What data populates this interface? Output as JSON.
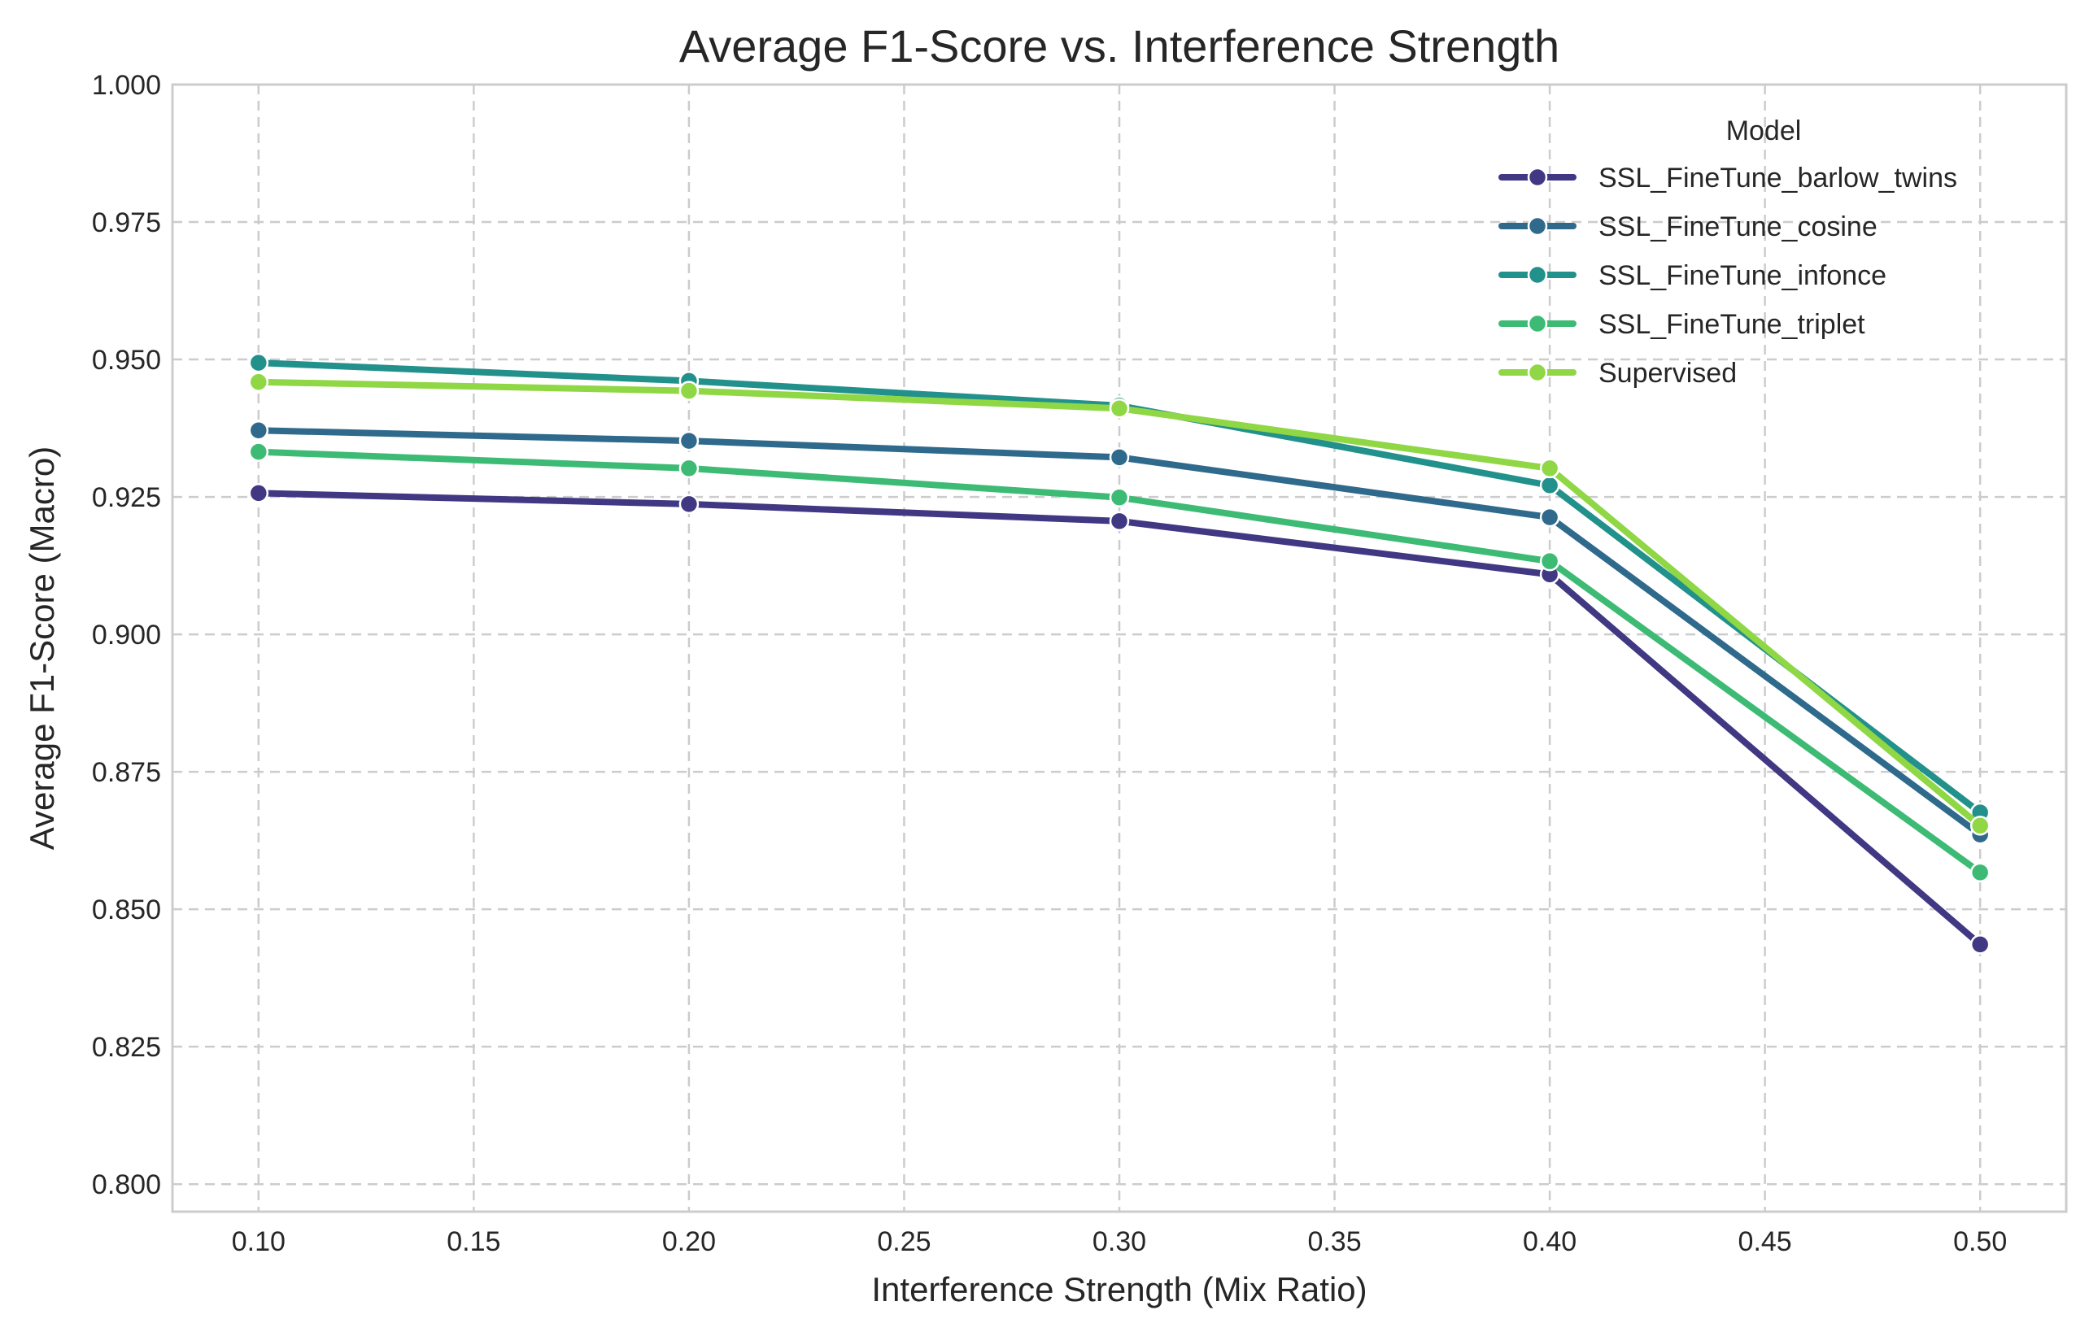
{
  "chart_data": {
    "type": "line",
    "title": "Average F1-Score vs. Interference Strength",
    "xlabel": "Interference Strength (Mix Ratio)",
    "ylabel": "Average F1-Score (Macro)",
    "xlim": [
      0.08,
      0.52
    ],
    "ylim": [
      0.795,
      1.0
    ],
    "x_ticks": [
      0.1,
      0.15,
      0.2,
      0.25,
      0.3,
      0.35,
      0.4,
      0.45,
      0.5
    ],
    "x_tick_labels": [
      "0.10",
      "0.15",
      "0.20",
      "0.25",
      "0.30",
      "0.35",
      "0.40",
      "0.45",
      "0.50"
    ],
    "y_ticks": [
      0.8,
      0.825,
      0.85,
      0.875,
      0.9,
      0.925,
      0.95,
      0.975,
      1.0
    ],
    "y_tick_labels": [
      "0.800",
      "0.825",
      "0.850",
      "0.875",
      "0.900",
      "0.925",
      "0.950",
      "0.975",
      "1.000"
    ],
    "grid": true,
    "legend": {
      "title": "Model",
      "position": "top-right"
    },
    "x": [
      0.1,
      0.2,
      0.3,
      0.4,
      0.5
    ],
    "series": [
      {
        "name": "SSL_FineTune_barlow_twins",
        "color": "#413883",
        "values": [
          0.9257,
          0.9237,
          0.9206,
          0.9109,
          0.8436
        ]
      },
      {
        "name": "SSL_FineTune_cosine",
        "color": "#2f6a8c",
        "values": [
          0.9371,
          0.9352,
          0.9322,
          0.9213,
          0.8636
        ]
      },
      {
        "name": "SSL_FineTune_infonce",
        "color": "#23918b",
        "values": [
          0.9494,
          0.9461,
          0.9416,
          0.9271,
          0.8676
        ]
      },
      {
        "name": "SSL_FineTune_triplet",
        "color": "#3dbb75",
        "values": [
          0.9332,
          0.9302,
          0.9249,
          0.9133,
          0.8567
        ]
      },
      {
        "name": "Supervised",
        "color": "#8fd745",
        "values": [
          0.9459,
          0.9443,
          0.9411,
          0.9302,
          0.8652
        ]
      }
    ]
  }
}
